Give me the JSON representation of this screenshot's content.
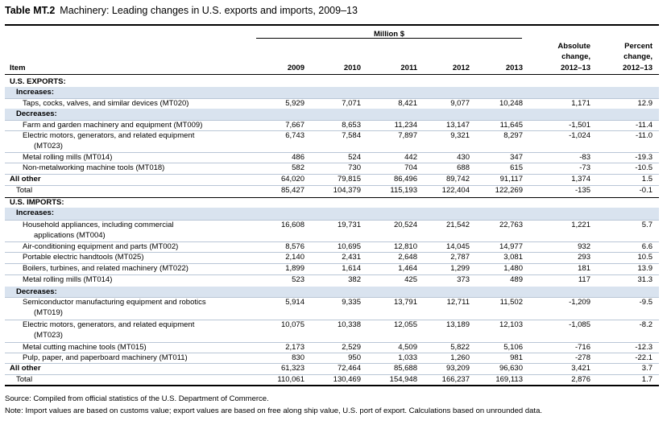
{
  "title": {
    "number": "Table MT.2",
    "text": "Machinery: Leading changes in U.S. exports and imports, 2009–13"
  },
  "header": {
    "unit": "Million $",
    "item": "Item",
    "years": [
      "2009",
      "2010",
      "2011",
      "2012",
      "2013"
    ],
    "abs_change": [
      "Absolute",
      "change,",
      "2012–13"
    ],
    "pct_change": [
      "Percent",
      "change,",
      "2012–13"
    ]
  },
  "rows": [
    {
      "label": "U.S. EXPORTS:",
      "type": "section"
    },
    {
      "label": "Increases:",
      "type": "subsection"
    },
    {
      "label": "Taps, cocks, valves, and similar devices (MT020)",
      "type": "item",
      "values": [
        "5,929",
        "7,071",
        "8,421",
        "9,077",
        "10,248",
        "1,171",
        "12.9"
      ]
    },
    {
      "label": "Decreases:",
      "type": "subsection"
    },
    {
      "label": "Farm and garden machinery and equipment (MT009)",
      "type": "item",
      "values": [
        "7,667",
        "8,653",
        "11,234",
        "13,147",
        "11,645",
        "-1,501",
        "-11.4"
      ]
    },
    {
      "label": "Electric motors, generators, and related equipment",
      "label2": "(MT023)",
      "type": "item",
      "values": [
        "6,743",
        "7,584",
        "7,897",
        "9,321",
        "8,297",
        "-1,024",
        "-11.0"
      ]
    },
    {
      "label": "Metal rolling mills (MT014)",
      "type": "item",
      "values": [
        "486",
        "524",
        "442",
        "430",
        "347",
        "-83",
        "-19.3"
      ]
    },
    {
      "label": "Non-metalworking machine tools (MT018)",
      "type": "item",
      "values": [
        "582",
        "730",
        "704",
        "688",
        "615",
        "-73",
        "-10.5"
      ]
    },
    {
      "label": "All other",
      "type": "allother",
      "values": [
        "64,020",
        "79,815",
        "86,496",
        "89,742",
        "91,117",
        "1,374",
        "1.5"
      ]
    },
    {
      "label": "Total",
      "type": "total",
      "values": [
        "85,427",
        "104,379",
        "115,193",
        "122,404",
        "122,269",
        "-135",
        "-0.1"
      ]
    },
    {
      "label": "U.S. IMPORTS:",
      "type": "section"
    },
    {
      "label": "Increases:",
      "type": "subsection"
    },
    {
      "label": "Household appliances, including commercial",
      "label2": "applications (MT004)",
      "type": "item",
      "values": [
        "16,608",
        "19,731",
        "20,524",
        "21,542",
        "22,763",
        "1,221",
        "5.7"
      ]
    },
    {
      "label": "Air-conditioning equipment and parts (MT002)",
      "type": "item",
      "values": [
        "8,576",
        "10,695",
        "12,810",
        "14,045",
        "14,977",
        "932",
        "6.6"
      ]
    },
    {
      "label": "Portable electric handtools (MT025)",
      "type": "item",
      "values": [
        "2,140",
        "2,431",
        "2,648",
        "2,787",
        "3,081",
        "293",
        "10.5"
      ]
    },
    {
      "label": "Boilers, turbines, and related machinery (MT022)",
      "type": "item",
      "values": [
        "1,899",
        "1,614",
        "1,464",
        "1,299",
        "1,480",
        "181",
        "13.9"
      ]
    },
    {
      "label": "Metal rolling mills (MT014)",
      "type": "item",
      "values": [
        "523",
        "382",
        "425",
        "373",
        "489",
        "117",
        "31.3"
      ]
    },
    {
      "label": "Decreases:",
      "type": "subsection"
    },
    {
      "label": "Semiconductor manufacturing equipment and robotics",
      "label2": "(MT019)",
      "type": "item",
      "values": [
        "5,914",
        "9,335",
        "13,791",
        "12,711",
        "11,502",
        "-1,209",
        "-9.5"
      ]
    },
    {
      "label": "Electric motors, generators, and related equipment",
      "label2": "(MT023)",
      "type": "item",
      "values": [
        "10,075",
        "10,338",
        "12,055",
        "13,189",
        "12,103",
        "-1,085",
        "-8.2"
      ]
    },
    {
      "label": "Metal cutting machine tools (MT015)",
      "type": "item",
      "values": [
        "2,173",
        "2,529",
        "4,509",
        "5,822",
        "5,106",
        "-716",
        "-12.3"
      ]
    },
    {
      "label": "Pulp, paper, and paperboard machinery (MT011)",
      "type": "item",
      "values": [
        "830",
        "950",
        "1,033",
        "1,260",
        "981",
        "-278",
        "-22.1"
      ]
    },
    {
      "label": "All other",
      "type": "allother",
      "values": [
        "61,323",
        "72,464",
        "85,688",
        "93,209",
        "96,630",
        "3,421",
        "3.7"
      ]
    },
    {
      "label": "Total",
      "type": "total",
      "values": [
        "110,061",
        "130,469",
        "154,948",
        "166,237",
        "169,113",
        "2,876",
        "1.7"
      ]
    }
  ],
  "footnotes": {
    "source": "Source: Compiled from official statistics of the U.S. Department of Commerce.",
    "note": "Note: Import values are based on customs value; export values are based on free along ship value, U.S. port of export. Calculations based on unrounded data."
  }
}
